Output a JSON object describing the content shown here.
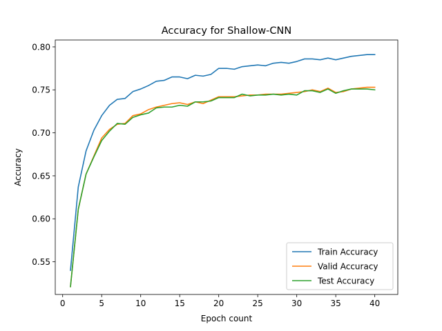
{
  "chart_data": {
    "type": "line",
    "title": "Accuracy for Shallow-CNN",
    "xlabel": "Epoch count",
    "ylabel": "Accuracy",
    "xlim": [
      -0.95,
      42.95
    ],
    "ylim": [
      0.512,
      0.808
    ],
    "xticks": [
      0,
      5,
      10,
      15,
      20,
      25,
      30,
      35,
      40
    ],
    "yticks": [
      0.55,
      0.6,
      0.65,
      0.7,
      0.75,
      0.8
    ],
    "xtick_labels": [
      "0",
      "5",
      "10",
      "15",
      "20",
      "25",
      "30",
      "35",
      "40"
    ],
    "ytick_labels": [
      "0.55",
      "0.60",
      "0.65",
      "0.70",
      "0.75",
      "0.80"
    ],
    "grid": false,
    "legend_position": "lower-right",
    "x": [
      1,
      2,
      3,
      4,
      5,
      6,
      7,
      8,
      9,
      10,
      11,
      12,
      13,
      14,
      15,
      16,
      17,
      18,
      19,
      20,
      21,
      22,
      23,
      24,
      25,
      26,
      27,
      28,
      29,
      30,
      31,
      32,
      33,
      34,
      35,
      36,
      37,
      38,
      39,
      40
    ],
    "series": [
      {
        "name": "Train Accuracy",
        "color": "#1f77b4",
        "values": [
          0.54,
          0.637,
          0.679,
          0.703,
          0.72,
          0.732,
          0.739,
          0.74,
          0.748,
          0.751,
          0.755,
          0.76,
          0.761,
          0.765,
          0.765,
          0.763,
          0.767,
          0.766,
          0.768,
          0.775,
          0.775,
          0.774,
          0.777,
          0.778,
          0.779,
          0.778,
          0.781,
          0.782,
          0.781,
          0.783,
          0.786,
          0.786,
          0.785,
          0.787,
          0.785,
          0.787,
          0.789,
          0.79,
          0.791,
          0.791
        ]
      },
      {
        "name": "Valid Accuracy",
        "color": "#ff7f0e",
        "values": [
          0.521,
          0.611,
          0.652,
          0.673,
          0.694,
          0.704,
          0.71,
          0.711,
          0.72,
          0.722,
          0.727,
          0.73,
          0.732,
          0.734,
          0.735,
          0.733,
          0.736,
          0.734,
          0.738,
          0.742,
          0.742,
          0.742,
          0.743,
          0.744,
          0.744,
          0.745,
          0.745,
          0.745,
          0.746,
          0.747,
          0.748,
          0.75,
          0.748,
          0.752,
          0.747,
          0.748,
          0.751,
          0.752,
          0.753,
          0.753
        ]
      },
      {
        "name": "Test Accuracy",
        "color": "#2ca02c",
        "values": [
          0.521,
          0.611,
          0.652,
          0.672,
          0.691,
          0.702,
          0.711,
          0.71,
          0.718,
          0.721,
          0.723,
          0.729,
          0.73,
          0.73,
          0.732,
          0.731,
          0.736,
          0.736,
          0.737,
          0.741,
          0.741,
          0.741,
          0.745,
          0.743,
          0.744,
          0.744,
          0.745,
          0.744,
          0.745,
          0.744,
          0.749,
          0.749,
          0.747,
          0.751,
          0.746,
          0.749,
          0.751,
          0.751,
          0.751,
          0.75
        ]
      }
    ]
  }
}
